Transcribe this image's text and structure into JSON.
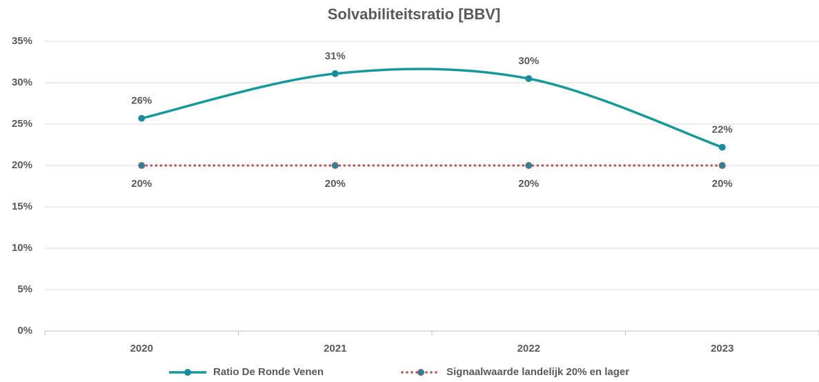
{
  "chart_data": {
    "type": "line",
    "title": "Solvabiliteitsratio [BBV]",
    "categories": [
      "2020",
      "2021",
      "2022",
      "2023"
    ],
    "series": [
      {
        "name": "Ratio De Ronde Venen",
        "color": "#16999a",
        "marker_color": "#1a8aa0",
        "style": "solid",
        "smooth": true,
        "values": [
          25.7,
          31.1,
          30.5,
          22.2
        ],
        "value_labels": [
          "26%",
          "31%",
          "30%",
          "22%"
        ],
        "label_position": "above"
      },
      {
        "name": "Signaalwaarde landelijk 20% en lager",
        "color": "#c0504d",
        "marker_color": "#1a8aa0",
        "style": "dotted",
        "smooth": false,
        "values": [
          20,
          20,
          20,
          20
        ],
        "value_labels": [
          "20%",
          "20%",
          "20%",
          "20%"
        ],
        "label_position": "below"
      }
    ],
    "ylim": [
      0,
      35
    ],
    "yticks": [
      {
        "value": 0,
        "label": "0%"
      },
      {
        "value": 5,
        "label": "5%"
      },
      {
        "value": 10,
        "label": "10%"
      },
      {
        "value": 15,
        "label": "15%"
      },
      {
        "value": 20,
        "label": "20%"
      },
      {
        "value": 25,
        "label": "25%"
      },
      {
        "value": 30,
        "label": "30%"
      },
      {
        "value": 35,
        "label": "35%"
      }
    ],
    "grid": true,
    "legend": "bottom"
  }
}
